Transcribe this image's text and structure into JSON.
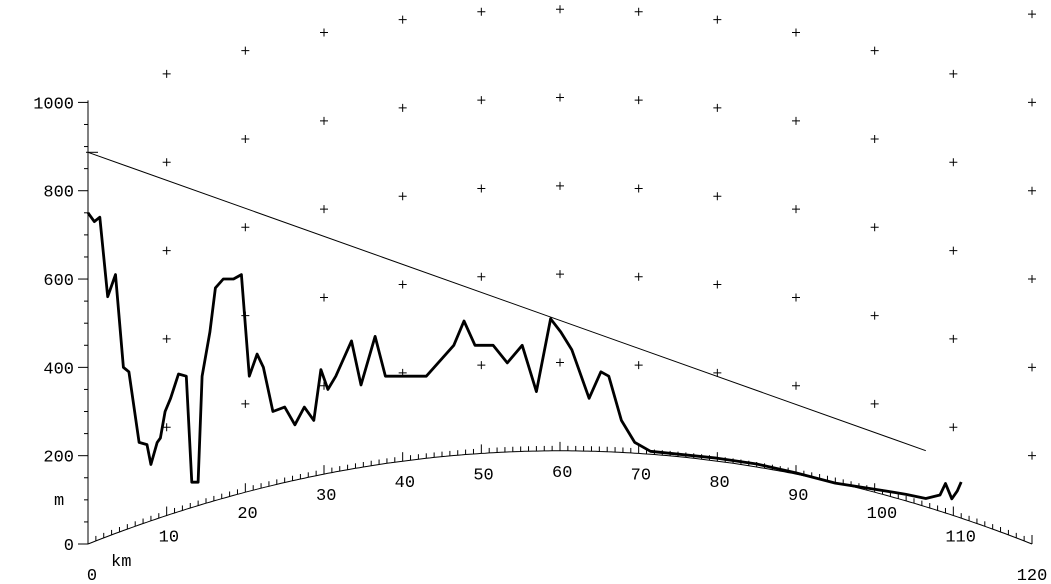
{
  "chart_data": {
    "type": "line",
    "title": "",
    "xlabel": "km",
    "ylabel": "m",
    "xlim": [
      0,
      120
    ],
    "ylim": [
      0,
      1000
    ],
    "y_ticks": [
      0,
      200,
      400,
      600,
      800,
      1000
    ],
    "x_end_labels": [
      0,
      120
    ],
    "curve_labels": [
      10,
      20,
      30,
      40,
      50,
      60,
      70,
      80,
      90,
      100,
      110
    ],
    "earth_bulge_max_m": 211,
    "grid": "crosses",
    "sight_line": {
      "from": {
        "km": 0,
        "m": 887
      },
      "to": {
        "km": 106.5,
        "m": 127
      }
    },
    "series": [
      {
        "x": [
          0,
          0.8,
          1.5,
          2.5,
          3.5,
          4.5,
          5.2,
          6.5,
          7.5,
          8,
          8.8,
          9.2,
          9.8,
          10.5,
          11.5,
          12.5,
          13.2,
          14,
          14.5,
          15.5,
          16.2,
          17.2,
          18.5,
          19.5,
          20.5,
          21.5,
          22.3,
          23.5,
          25,
          26.3,
          27.5,
          28.7,
          29.6,
          30.5,
          31.5,
          33.5,
          34.7,
          36.5,
          37.8,
          39,
          40,
          43,
          46.5,
          47.8,
          49.2,
          51.5,
          53.3,
          55.2,
          57,
          58.8,
          60.1,
          61.5,
          63.7,
          65.2,
          66.2,
          67.8,
          69.5,
          71.5
        ],
        "y": [
          750,
          730,
          740,
          560,
          610,
          400,
          390,
          230,
          225,
          180,
          230,
          240,
          300,
          330,
          385,
          380,
          140,
          140,
          380,
          480,
          580,
          600,
          600,
          610,
          380,
          430,
          400,
          300,
          310,
          270,
          310,
          280,
          395,
          350,
          380,
          460,
          360,
          470,
          380,
          380,
          380,
          380,
          450,
          505,
          450,
          450,
          410,
          450,
          345,
          510,
          480,
          440,
          330,
          390,
          380,
          280,
          230,
          210
        ],
        "bulge_relative_from_km": 71.5,
        "x_rel": [
          71.5,
          80,
          85,
          90,
          95,
          100,
          102.5,
          104,
          106.5,
          108.3,
          109,
          109.8,
          110.5,
          111
        ],
        "y_rel": [
          0,
          0,
          0,
          -4,
          -8,
          0,
          5,
          8,
          12,
          30,
          60,
          30,
          52,
          75
        ]
      }
    ]
  }
}
